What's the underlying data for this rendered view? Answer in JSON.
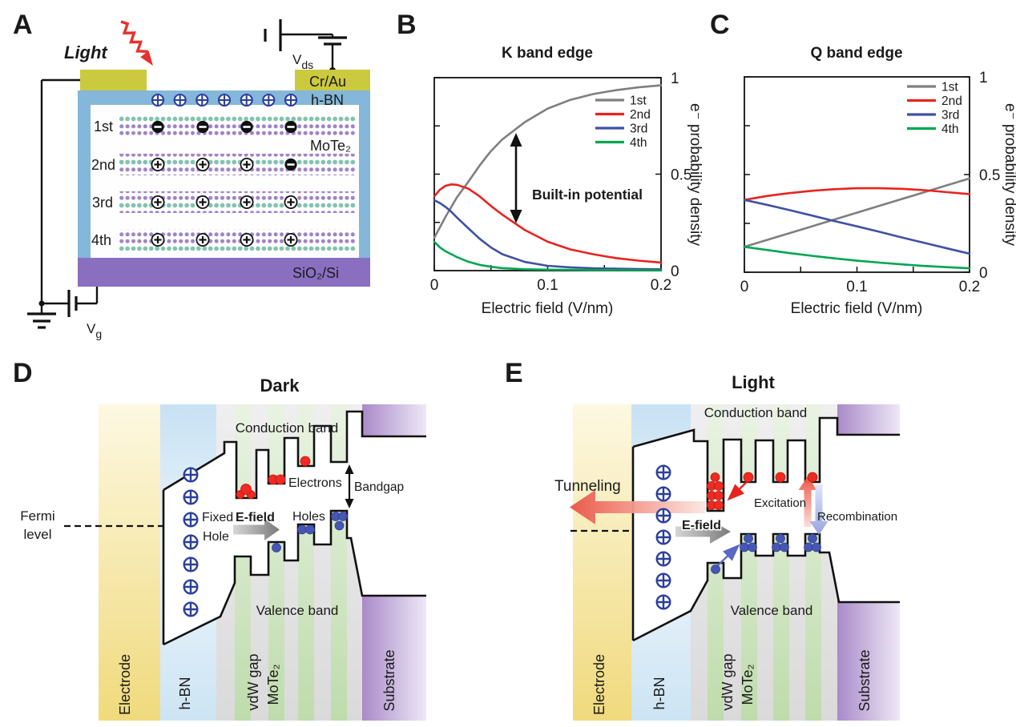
{
  "panels": {
    "a": "A",
    "b": "B",
    "c": "C",
    "d": "D",
    "e": "E"
  },
  "colors": {
    "series_1st": "#7f7f7f",
    "series_2nd": "#e8231f",
    "series_3rd": "#3f51a3",
    "series_4th": "#00a651",
    "electrode_olive": "#cbc93e",
    "hbn_frame_blue": "#84b7d9",
    "sio2_purple": "#8a6fc0",
    "fixed_hole_blue": "#2b3f9e",
    "electron_red": "#ee2a22",
    "hole_blue": "#4656b4"
  },
  "panel_a": {
    "light_label": "Light",
    "vds_label": "V",
    "vds_sub": "ds",
    "vg_label": "V",
    "vg_sub": "g",
    "cr_au_label": "Cr/Au",
    "hbn_label": "h-BN",
    "mote2_label": "MoTe₂",
    "sio2_label": "SiO₂/Si",
    "layers": [
      {
        "label": "1st",
        "color": "#1a1a1a"
      },
      {
        "label": "2nd",
        "color": "#e8231f"
      },
      {
        "label": "3rd",
        "color": "#3f51a3"
      },
      {
        "label": "4th",
        "color": "#00a651"
      }
    ]
  },
  "chart_data": [
    {
      "type": "line",
      "title": "K band edge",
      "xlabel": "Electric field (V/nm)",
      "ylabel": "e⁻ probability density",
      "xlim": [
        0,
        0.2
      ],
      "ylim": [
        0,
        1
      ],
      "grid": false,
      "legend_position": "top-right-inside",
      "annotation": "Built-in potential",
      "xticks": [
        0,
        0.05,
        0.1,
        0.15,
        0.2
      ],
      "yticks_left": [
        0,
        0.25,
        0.5,
        0.75,
        1
      ],
      "yticks_right": [
        0,
        0.5,
        1
      ],
      "xtick_labels": [
        {
          "value": 0,
          "label": "0"
        },
        {
          "value": 0.1,
          "label": "0.1"
        },
        {
          "value": 0.2,
          "label": "0.2"
        }
      ],
      "ytick_labels": [
        {
          "value": 0,
          "label": "0"
        },
        {
          "value": 0.5,
          "label": "0.5"
        },
        {
          "value": 1,
          "label": "1"
        }
      ],
      "x": [
        0,
        0.005,
        0.01,
        0.015,
        0.02,
        0.03,
        0.04,
        0.05,
        0.06,
        0.08,
        0.1,
        0.12,
        0.14,
        0.16,
        0.18,
        0.2
      ],
      "series": [
        {
          "name": "1st",
          "color": "#7f7f7f",
          "values": [
            0.17,
            0.225,
            0.28,
            0.33,
            0.38,
            0.46,
            0.545,
            0.62,
            0.68,
            0.77,
            0.84,
            0.885,
            0.915,
            0.935,
            0.95,
            0.96
          ]
        },
        {
          "name": "2nd",
          "color": "#e8231f",
          "values": [
            0.385,
            0.42,
            0.44,
            0.447,
            0.445,
            0.425,
            0.385,
            0.335,
            0.29,
            0.21,
            0.15,
            0.11,
            0.085,
            0.065,
            0.052,
            0.042
          ]
        },
        {
          "name": "3rd",
          "color": "#3f51a3",
          "values": [
            0.365,
            0.35,
            0.33,
            0.305,
            0.275,
            0.22,
            0.165,
            0.12,
            0.085,
            0.045,
            0.025,
            0.017,
            0.012,
            0.01,
            0.008,
            0.007
          ]
        },
        {
          "name": "4th",
          "color": "#00a651",
          "values": [
            0.15,
            0.12,
            0.1,
            0.085,
            0.07,
            0.046,
            0.03,
            0.02,
            0.013,
            0.007,
            0.005,
            0.004,
            0.003,
            0.003,
            0.002,
            0.002
          ]
        }
      ]
    },
    {
      "type": "line",
      "title": "Q band edge",
      "xlabel": "Electric field (V/nm)",
      "ylabel": "e⁻ probability density",
      "xlim": [
        0,
        0.2
      ],
      "ylim": [
        0,
        1
      ],
      "grid": false,
      "legend_position": "top-right-inside",
      "annotation": "",
      "xticks": [
        0,
        0.05,
        0.1,
        0.15,
        0.2
      ],
      "yticks_left": [
        0,
        0.25,
        0.5,
        0.75,
        1
      ],
      "yticks_right": [
        0,
        0.5,
        1
      ],
      "xtick_labels": [
        {
          "value": 0,
          "label": "0"
        },
        {
          "value": 0.1,
          "label": "0.1"
        },
        {
          "value": 0.2,
          "label": "0.2"
        }
      ],
      "ytick_labels": [
        {
          "value": 0,
          "label": "0"
        },
        {
          "value": 0.5,
          "label": "0.5"
        },
        {
          "value": 1,
          "label": "1"
        }
      ],
      "x": [
        0,
        0.02,
        0.04,
        0.06,
        0.08,
        0.1,
        0.12,
        0.14,
        0.16,
        0.18,
        0.2
      ],
      "series": [
        {
          "name": "1st",
          "color": "#7f7f7f",
          "values": [
            0.13,
            0.165,
            0.2,
            0.235,
            0.27,
            0.305,
            0.34,
            0.375,
            0.41,
            0.445,
            0.48
          ]
        },
        {
          "name": "2nd",
          "color": "#e8231f",
          "values": [
            0.37,
            0.39,
            0.405,
            0.417,
            0.425,
            0.43,
            0.43,
            0.427,
            0.42,
            0.41,
            0.4
          ]
        },
        {
          "name": "3rd",
          "color": "#3f51a3",
          "values": [
            0.37,
            0.345,
            0.318,
            0.29,
            0.262,
            0.235,
            0.207,
            0.178,
            0.15,
            0.122,
            0.095
          ]
        },
        {
          "name": "4th",
          "color": "#00a651",
          "values": [
            0.13,
            0.114,
            0.098,
            0.084,
            0.071,
            0.059,
            0.049,
            0.04,
            0.032,
            0.026,
            0.02
          ]
        }
      ]
    }
  ],
  "panel_d": {
    "title": "Dark",
    "conduction_label": "Conduction band",
    "valence_label": "Valence band",
    "fermi_line1": "Fermi",
    "fermi_line2": "level",
    "fixed_line1": "Fixed",
    "fixed_line2": "Hole",
    "efield_label": "E-field",
    "electrons_label": "Electrons",
    "holes_label": "Holes",
    "bandgap_label": "Bandgap",
    "regions": [
      "Electrode",
      "h-BN",
      "vdW gap",
      "MoTe₂",
      "Substrate"
    ]
  },
  "panel_e": {
    "title": "Light",
    "tunneling_label": "Tunneling",
    "conduction_label": "Conduction band",
    "valence_label": "Valence band",
    "efield_label": "E-field",
    "excitation_label": "Excitation",
    "recombination_label": "Recombination",
    "regions": [
      "Electrode",
      "h-BN",
      "vdW gap",
      "MoTe₂",
      "Substrate"
    ]
  }
}
